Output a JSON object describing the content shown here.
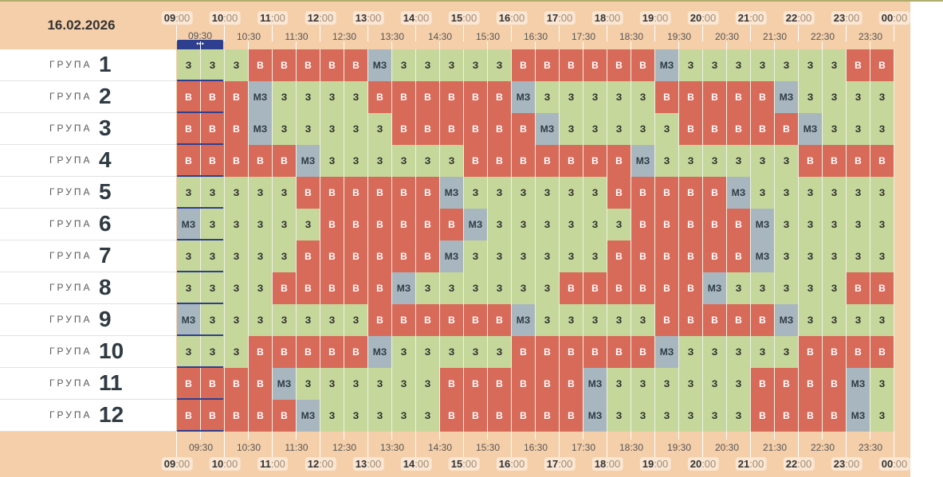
{
  "date": "16.02.2026",
  "group_word": "ГРУПА",
  "hours": [
    {
      "h": "09",
      "m": ":00"
    },
    {
      "h": "10",
      "m": ":00"
    },
    {
      "h": "11",
      "m": ":00"
    },
    {
      "h": "12",
      "m": ":00"
    },
    {
      "h": "13",
      "m": ":00"
    },
    {
      "h": "14",
      "m": ":00"
    },
    {
      "h": "15",
      "m": ":00"
    },
    {
      "h": "16",
      "m": ":00"
    },
    {
      "h": "17",
      "m": ":00"
    },
    {
      "h": "18",
      "m": ":00"
    },
    {
      "h": "19",
      "m": ":00"
    },
    {
      "h": "20",
      "m": ":00"
    },
    {
      "h": "21",
      "m": ":00"
    },
    {
      "h": "22",
      "m": ":00"
    },
    {
      "h": "23",
      "m": ":00"
    },
    {
      "h": "00",
      "m": ":00"
    }
  ],
  "half_hours": [
    "09:30",
    "10:30",
    "11:30",
    "12:30",
    "13:30",
    "14:30",
    "15:30",
    "16:30",
    "17:30",
    "18:30",
    "19:30",
    "20:30",
    "21:30",
    "22:30",
    "23:30"
  ],
  "current_indicator": "•••",
  "status_text": {
    "z": "З",
    "v": "В",
    "m": "МЗ"
  },
  "status_colors": {
    "z": "#c6d79c",
    "v": "#d86a5a",
    "m": "#a8b7bf"
  },
  "groups": [
    {
      "number": "1",
      "cells": [
        "z",
        "z",
        "z",
        "v",
        "v",
        "v",
        "v",
        "v",
        "m",
        "z",
        "z",
        "z",
        "z",
        "z",
        "v",
        "v",
        "v",
        "v",
        "v",
        "v",
        "m",
        "z",
        "z",
        "z",
        "z",
        "z",
        "z",
        "z",
        "v",
        "v"
      ]
    },
    {
      "number": "2",
      "cells": [
        "v",
        "v",
        "v",
        "m",
        "z",
        "z",
        "z",
        "z",
        "v",
        "v",
        "v",
        "v",
        "v",
        "v",
        "m",
        "z",
        "z",
        "z",
        "z",
        "z",
        "v",
        "v",
        "v",
        "v",
        "v",
        "m",
        "z",
        "z",
        "z",
        "z"
      ]
    },
    {
      "number": "3",
      "cells": [
        "v",
        "v",
        "v",
        "m",
        "z",
        "z",
        "z",
        "z",
        "z",
        "v",
        "v",
        "v",
        "v",
        "v",
        "v",
        "m",
        "z",
        "z",
        "z",
        "z",
        "z",
        "v",
        "v",
        "v",
        "v",
        "v",
        "m",
        "z",
        "z",
        "z"
      ]
    },
    {
      "number": "4",
      "cells": [
        "v",
        "v",
        "v",
        "v",
        "v",
        "m",
        "z",
        "z",
        "z",
        "z",
        "z",
        "z",
        "v",
        "v",
        "v",
        "v",
        "v",
        "v",
        "v",
        "m",
        "z",
        "z",
        "z",
        "z",
        "z",
        "z",
        "v",
        "v",
        "v",
        "v"
      ]
    },
    {
      "number": "5",
      "cells": [
        "z",
        "z",
        "z",
        "z",
        "z",
        "v",
        "v",
        "v",
        "v",
        "v",
        "v",
        "m",
        "z",
        "z",
        "z",
        "z",
        "z",
        "z",
        "v",
        "v",
        "v",
        "v",
        "v",
        "m",
        "z",
        "z",
        "z",
        "z",
        "z",
        "z"
      ]
    },
    {
      "number": "6",
      "cells": [
        "m",
        "z",
        "z",
        "z",
        "z",
        "z",
        "v",
        "v",
        "v",
        "v",
        "v",
        "v",
        "m",
        "z",
        "z",
        "z",
        "z",
        "z",
        "z",
        "v",
        "v",
        "v",
        "v",
        "v",
        "m",
        "z",
        "z",
        "z",
        "z",
        "z"
      ]
    },
    {
      "number": "7",
      "cells": [
        "z",
        "z",
        "z",
        "z",
        "z",
        "v",
        "v",
        "v",
        "v",
        "v",
        "v",
        "m",
        "z",
        "z",
        "z",
        "z",
        "z",
        "z",
        "v",
        "v",
        "v",
        "v",
        "v",
        "v",
        "m",
        "z",
        "z",
        "z",
        "z",
        "z"
      ]
    },
    {
      "number": "8",
      "cells": [
        "z",
        "z",
        "z",
        "z",
        "v",
        "v",
        "v",
        "v",
        "v",
        "m",
        "z",
        "z",
        "z",
        "z",
        "z",
        "z",
        "v",
        "v",
        "v",
        "v",
        "v",
        "v",
        "m",
        "z",
        "z",
        "z",
        "z",
        "z",
        "v",
        "v"
      ]
    },
    {
      "number": "9",
      "cells": [
        "m",
        "z",
        "z",
        "z",
        "z",
        "z",
        "z",
        "z",
        "v",
        "v",
        "v",
        "v",
        "v",
        "v",
        "m",
        "z",
        "z",
        "z",
        "z",
        "z",
        "v",
        "v",
        "v",
        "v",
        "v",
        "m",
        "z",
        "z",
        "z",
        "z"
      ]
    },
    {
      "number": "10",
      "cells": [
        "z",
        "z",
        "z",
        "v",
        "v",
        "v",
        "v",
        "v",
        "m",
        "z",
        "z",
        "z",
        "z",
        "z",
        "v",
        "v",
        "v",
        "v",
        "v",
        "v",
        "m",
        "z",
        "z",
        "z",
        "z",
        "z",
        "v",
        "v",
        "v",
        "v"
      ]
    },
    {
      "number": "11",
      "cells": [
        "v",
        "v",
        "v",
        "v",
        "m",
        "z",
        "z",
        "z",
        "z",
        "z",
        "z",
        "v",
        "v",
        "v",
        "v",
        "v",
        "v",
        "m",
        "z",
        "z",
        "z",
        "z",
        "z",
        "z",
        "v",
        "v",
        "v",
        "v",
        "m",
        "z"
      ]
    },
    {
      "number": "12",
      "cells": [
        "v",
        "v",
        "v",
        "v",
        "v",
        "m",
        "z",
        "z",
        "z",
        "z",
        "z",
        "v",
        "v",
        "v",
        "v",
        "v",
        "v",
        "m",
        "z",
        "z",
        "z",
        "z",
        "z",
        "z",
        "v",
        "v",
        "v",
        "v",
        "m",
        "z"
      ]
    }
  ]
}
